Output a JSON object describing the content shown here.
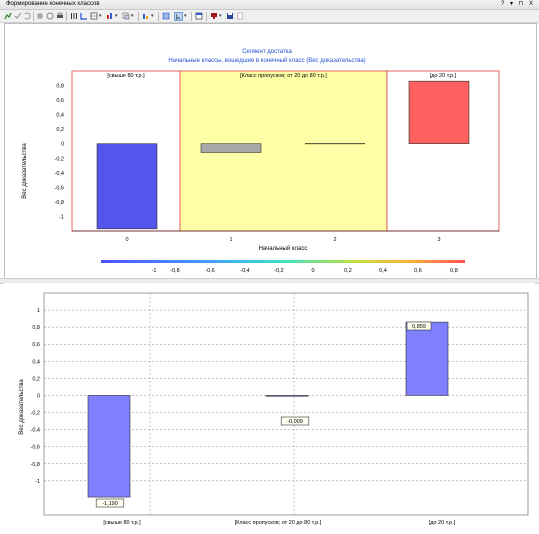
{
  "window": {
    "title": "Формирование конечных классов",
    "controls": "? ▾ ⊓ X"
  },
  "toolbar": {
    "icons": [
      "edit-chart-icon",
      "check-icon",
      "undo-icon",
      "chart-toggle-icon",
      "refresh-icon",
      "print-icon",
      "columns-icon",
      "axis-icon",
      "table-icon",
      "bar-chart-icon",
      "copy-icon",
      "sort-icon",
      "grid-icon",
      "select-icon",
      "window-icon",
      "color-icon",
      "save-icon",
      "export-icon"
    ]
  },
  "colors": {
    "blue_bar": "#5555ee",
    "gray_bar": "#a8a8a8",
    "red_bar": "#ff6060",
    "yellow_zone": "#ffffa8",
    "zone_border": "#e04040",
    "title_blue": "#2050d0",
    "lower_bar": "#8080ff"
  },
  "chart_data": [
    {
      "type": "bar",
      "title": "Сегмент достатка",
      "subtitle": "Начальные классы, вошедшие в конечный класс (Вес доказательства)",
      "xlabel": "Начальный класс",
      "ylabel": "Вес доказательства",
      "categories": [
        "0",
        "1",
        "2",
        "3"
      ],
      "values": [
        -1.17,
        -0.12,
        0.0,
        0.86
      ],
      "ylim": [
        -1.2,
        1.0
      ],
      "yticks": [
        "0,8",
        "0,6",
        "0,4",
        "0,2",
        "0",
        "-0,2",
        "-0,4",
        "-0,6",
        "-0,8",
        "-1"
      ],
      "zones": [
        {
          "label": "[свыше 80 т.р.]",
          "from": 0,
          "to": 0
        },
        {
          "label": "[Класс пропусков; от 20 до 80 т.р.]",
          "from": 1,
          "to": 2
        },
        {
          "label": "[до 20 т.р.]",
          "from": 3,
          "to": 3
        }
      ],
      "colorscale_ticks": [
        "-1",
        "-0,8",
        "-0,6",
        "-0,4",
        "-0,2",
        "0",
        "0,2",
        "0,4",
        "0,6",
        "0,8"
      ]
    },
    {
      "type": "bar",
      "ylabel": "Вес доказательства",
      "categories": [
        "[свыше 80 т.р.]",
        "[Класс пропусков; от 20 до 80 т.р.]",
        "[до 20 т.р.]"
      ],
      "values": [
        -1.19,
        -0.009,
        0.859
      ],
      "data_labels": [
        "-1,190",
        "-0,009",
        "0,859"
      ],
      "ylim": [
        -1.4,
        1.2
      ],
      "yticks": [
        "1",
        "0,8",
        "0,6",
        "0,4",
        "0,2",
        "0",
        "-0,2",
        "-0,4",
        "-0,6",
        "-0,8",
        "-1"
      ],
      "grid": true
    }
  ]
}
